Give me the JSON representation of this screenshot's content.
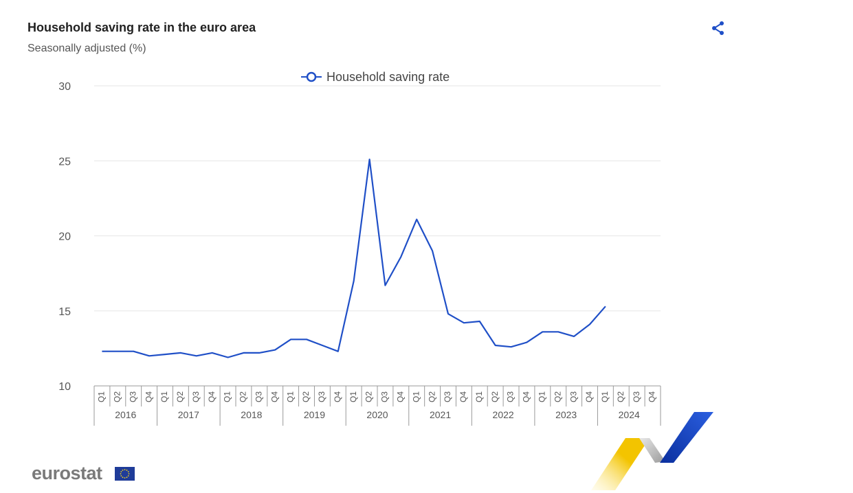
{
  "header": {
    "title": "Household saving rate in the euro area",
    "subtitle": "Seasonally adjusted (%)",
    "share_icon": "share-icon"
  },
  "branding": {
    "logo_text": "eurostat",
    "flag_icon": "eu-flag-icon"
  },
  "colors": {
    "series": "#1f4fc7",
    "grid": "#e6e6e6",
    "axis": "#999999",
    "share": "#1f4fc7"
  },
  "chart_data": {
    "type": "line",
    "title": "Household saving rate in the euro area",
    "subtitle": "Seasonally adjusted (%)",
    "ylim": [
      10,
      30
    ],
    "yticks": [
      10,
      15,
      20,
      25,
      30
    ],
    "grid": true,
    "legend_position": "top-center",
    "quarters": [
      "Q1",
      "Q2",
      "Q3",
      "Q4"
    ],
    "years": [
      "2016",
      "2017",
      "2018",
      "2019",
      "2020",
      "2021",
      "2022",
      "2023",
      "2024"
    ],
    "series": [
      {
        "name": "Household saving rate",
        "values": [
          12.3,
          12.3,
          12.3,
          12.0,
          12.1,
          12.2,
          12.0,
          12.2,
          11.9,
          12.2,
          12.2,
          12.4,
          13.1,
          13.1,
          12.7,
          12.3,
          17.0,
          25.1,
          16.7,
          18.6,
          21.1,
          19.0,
          14.8,
          14.2,
          14.3,
          12.7,
          12.6,
          12.9,
          13.6,
          13.6,
          13.3,
          14.1,
          15.3,
          null,
          null,
          null
        ]
      }
    ]
  }
}
